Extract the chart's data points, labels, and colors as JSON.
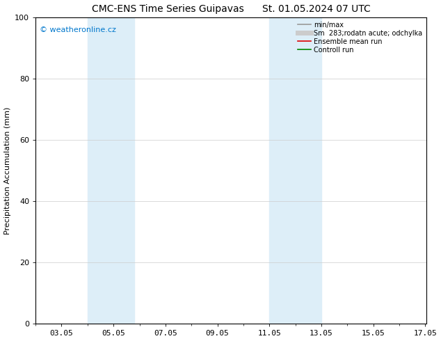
{
  "title": "CMC-ENS Time Series Guipavas      St. 01.05.2024 07 UTC",
  "ylabel": "Precipitation Accumulation (mm)",
  "xlabel": "",
  "ylim": [
    0,
    100
  ],
  "xlim": [
    2,
    17.05
  ],
  "xtick_labels": [
    "03.05",
    "05.05",
    "07.05",
    "09.05",
    "11.05",
    "13.05",
    "15.05",
    "17.05"
  ],
  "xtick_positions": [
    3,
    5,
    7,
    9,
    11,
    13,
    15,
    17
  ],
  "ytick_labels": [
    "0",
    "20",
    "40",
    "60",
    "80",
    "100"
  ],
  "ytick_positions": [
    0,
    20,
    40,
    60,
    80,
    100
  ],
  "shaded_regions": [
    {
      "xmin": 4.0,
      "xmax": 5.8,
      "color": "#ddeef8"
    },
    {
      "xmin": 11.0,
      "xmax": 13.0,
      "color": "#ddeef8"
    }
  ],
  "watermark_text": "© weatheronline.cz",
  "watermark_color": "#0077cc",
  "legend_items": [
    {
      "label": "min/max",
      "color": "#999999",
      "linestyle": "-",
      "linewidth": 1.2
    },
    {
      "label": "Sm  283;rodatn acute; odchylka",
      "color": "#cccccc",
      "linestyle": "-",
      "linewidth": 5
    },
    {
      "label": "Ensemble mean run",
      "color": "#dd0000",
      "linestyle": "-",
      "linewidth": 1.2
    },
    {
      "label": "Controll run",
      "color": "#008800",
      "linestyle": "-",
      "linewidth": 1.2
    }
  ],
  "background_color": "#ffffff",
  "plot_background": "#ffffff",
  "title_fontsize": 10,
  "axis_fontsize": 8,
  "tick_fontsize": 8,
  "watermark_fontsize": 8
}
